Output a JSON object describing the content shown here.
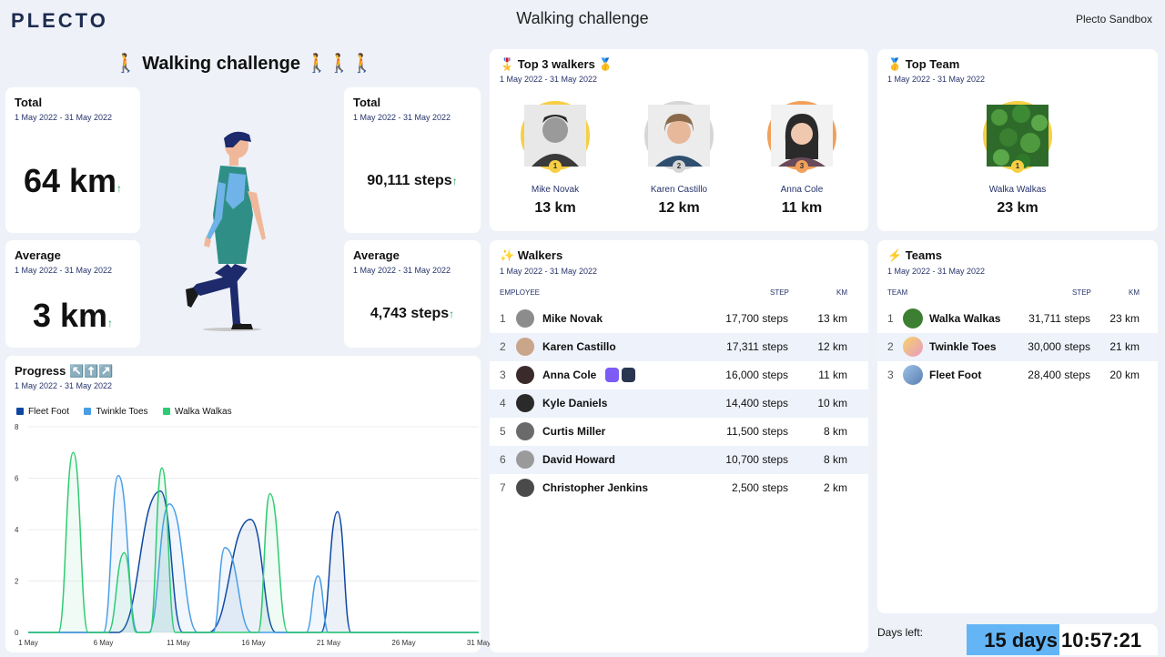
{
  "header": {
    "logo": "PLECTO",
    "title": "Walking challenge",
    "workspace": "Plecto Sandbox"
  },
  "banner": {
    "title": "🚶 Walking challenge 🚶🚶🚶"
  },
  "kpis": {
    "total_km": {
      "title": "Total",
      "period": "1 May 2022 - 31 May 2022",
      "value": "64 km",
      "trend": "↑"
    },
    "total_steps": {
      "title": "Total",
      "period": "1 May 2022 - 31 May 2022",
      "value": "90,111 steps",
      "trend": "↑"
    },
    "avg_km": {
      "title": "Average",
      "period": "1 May 2022 - 31 May 2022",
      "value": "3 km",
      "trend": "↑"
    },
    "avg_steps": {
      "title": "Average",
      "period": "1 May 2022 - 31 May 2022",
      "value": "4,743 steps",
      "trend": "↑"
    }
  },
  "top3": {
    "title": "🎖️ Top 3 walkers 🥇",
    "period": "1 May 2022 - 31 May 2022",
    "entries": [
      {
        "rank": "1",
        "name": "Mike Novak",
        "value": "13 km"
      },
      {
        "rank": "2",
        "name": "Karen Castillo",
        "value": "12 km"
      },
      {
        "rank": "3",
        "name": "Anna Cole",
        "value": "11 km"
      }
    ]
  },
  "top_team": {
    "title": "🥇 Top Team",
    "period": "1 May 2022 - 31 May 2022",
    "rank": "1",
    "name": "Walka Walkas",
    "value": "23 km"
  },
  "walkers": {
    "title": "✨ Walkers",
    "period": "1 May 2022 - 31 May 2022",
    "headers": {
      "employee": "EMPLOYEE",
      "step": "STEP",
      "km": "KM"
    },
    "rows": [
      {
        "rank": "1",
        "name": "Mike Novak",
        "steps": "17,700 steps",
        "km": "13 km"
      },
      {
        "rank": "2",
        "name": "Karen Castillo",
        "steps": "17,311 steps",
        "km": "12 km"
      },
      {
        "rank": "3",
        "name": "Anna Cole",
        "steps": "16,000 steps",
        "km": "11 km"
      },
      {
        "rank": "4",
        "name": "Kyle Daniels",
        "steps": "14,400 steps",
        "km": "10 km"
      },
      {
        "rank": "5",
        "name": "Curtis Miller",
        "steps": "11,500 steps",
        "km": "8 km"
      },
      {
        "rank": "6",
        "name": "David Howard",
        "steps": "10,700 steps",
        "km": "8 km"
      },
      {
        "rank": "7",
        "name": "Christopher Jenkins",
        "steps": "2,500 steps",
        "km": "2 km"
      }
    ]
  },
  "teams": {
    "title": "⚡ Teams",
    "period": "1 May 2022 - 31 May 2022",
    "headers": {
      "team": "TEAM",
      "step": "STEP",
      "km": "KM"
    },
    "rows": [
      {
        "rank": "1",
        "name": "Walka Walkas",
        "steps": "31,711 steps",
        "km": "23 km"
      },
      {
        "rank": "2",
        "name": "Twinkle Toes",
        "steps": "30,000 steps",
        "km": "21 km"
      },
      {
        "rank": "3",
        "name": "Fleet Foot",
        "steps": "28,400 steps",
        "km": "20 km"
      }
    ]
  },
  "countdown": {
    "label": "Days left:",
    "days": "15 days",
    "time": "10:57:21"
  },
  "progress": {
    "title": "Progress ↖️⬆️↗️",
    "period": "1 May 2022 - 31 May 2022"
  },
  "colors": {
    "fleet_foot": "#0d47a1",
    "twinkle_toes": "#4a9ee6",
    "walka_walkas": "#2ecc71",
    "countdown_bg": "#64b5f6"
  },
  "chart_data": {
    "type": "area",
    "xlabel": "",
    "ylabel": "",
    "ylim": [
      0,
      8
    ],
    "xlim": [
      1,
      31
    ],
    "yticks": [
      "0",
      "2",
      "4",
      "6",
      "8"
    ],
    "xticks": [
      {
        "label": "1 May",
        "x": 1
      },
      {
        "label": "6 May",
        "x": 6
      },
      {
        "label": "11 May",
        "x": 11
      },
      {
        "label": "16 May",
        "x": 16
      },
      {
        "label": "21 May",
        "x": 21
      },
      {
        "label": "26 May",
        "x": 26
      },
      {
        "label": "31 May",
        "x": 31
      }
    ],
    "legend": "top-left",
    "series": [
      {
        "name": "Fleet Foot",
        "color": "#0d47a1",
        "points": [
          [
            1,
            0
          ],
          [
            7,
            0
          ],
          [
            9.8,
            5.5
          ],
          [
            11.3,
            0
          ],
          [
            13,
            0
          ],
          [
            15.8,
            4.4
          ],
          [
            17.5,
            0
          ],
          [
            20.5,
            0
          ],
          [
            21.6,
            4.7
          ],
          [
            22.5,
            0
          ],
          [
            31,
            0
          ]
        ]
      },
      {
        "name": "Twinkle Toes",
        "color": "#4a9ee6",
        "points": [
          [
            1,
            0
          ],
          [
            6,
            0
          ],
          [
            7,
            6.1
          ],
          [
            8.3,
            0
          ],
          [
            9,
            0
          ],
          [
            10.4,
            5.0
          ],
          [
            12.3,
            0
          ],
          [
            13.3,
            0
          ],
          [
            14.1,
            3.3
          ],
          [
            15.9,
            0
          ],
          [
            19.5,
            0
          ],
          [
            20.3,
            2.2
          ],
          [
            21,
            0
          ],
          [
            31,
            0
          ]
        ]
      },
      {
        "name": "Walka Walkas",
        "color": "#2ecc71",
        "points": [
          [
            1,
            0
          ],
          [
            3,
            0
          ],
          [
            4,
            7.0
          ],
          [
            5,
            0
          ],
          [
            6.3,
            0
          ],
          [
            7.4,
            3.1
          ],
          [
            8.2,
            0
          ],
          [
            9.1,
            0
          ],
          [
            9.9,
            6.4
          ],
          [
            10.8,
            0
          ],
          [
            16.3,
            0
          ],
          [
            17.1,
            5.4
          ],
          [
            18.3,
            0
          ],
          [
            31,
            0
          ]
        ]
      }
    ]
  }
}
